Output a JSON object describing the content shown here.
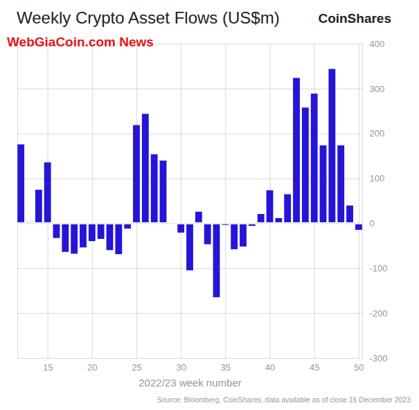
{
  "chart_data": {
    "type": "bar",
    "title": "Weekly Crypto Asset Flows (US$m)",
    "brand": "CoinShares",
    "watermark": "WebGiaCoin.com News",
    "x_label": "2022/23 week number",
    "source": "Source: Bloomberg, CoinShares, data available as of close 16 December 2023",
    "x": [
      12,
      13,
      14,
      15,
      16,
      17,
      18,
      19,
      20,
      21,
      22,
      23,
      24,
      25,
      26,
      27,
      28,
      29,
      30,
      31,
      32,
      33,
      34,
      35,
      36,
      37,
      38,
      39,
      40,
      41,
      42,
      43,
      44,
      45,
      46,
      47,
      48,
      49,
      50
    ],
    "values": [
      178,
      5,
      77,
      138,
      -35,
      -66,
      -70,
      -56,
      -42,
      -37,
      -62,
      -71,
      -14,
      221,
      246,
      156,
      142,
      1,
      -23,
      -107,
      28,
      -49,
      -167,
      -6,
      -60,
      -54,
      -8,
      23,
      76,
      14,
      67,
      326,
      260,
      291,
      176,
      346,
      176,
      42,
      -17
    ],
    "color": "#2415d9",
    "xlim": [
      11.6,
      50.4
    ],
    "xticks": [
      15,
      20,
      25,
      30,
      35,
      40,
      45,
      50
    ],
    "ylim": [
      -300,
      400
    ],
    "yticks": [
      -300,
      -200,
      -100,
      0,
      100,
      200,
      300,
      400
    ],
    "grid": true
  }
}
